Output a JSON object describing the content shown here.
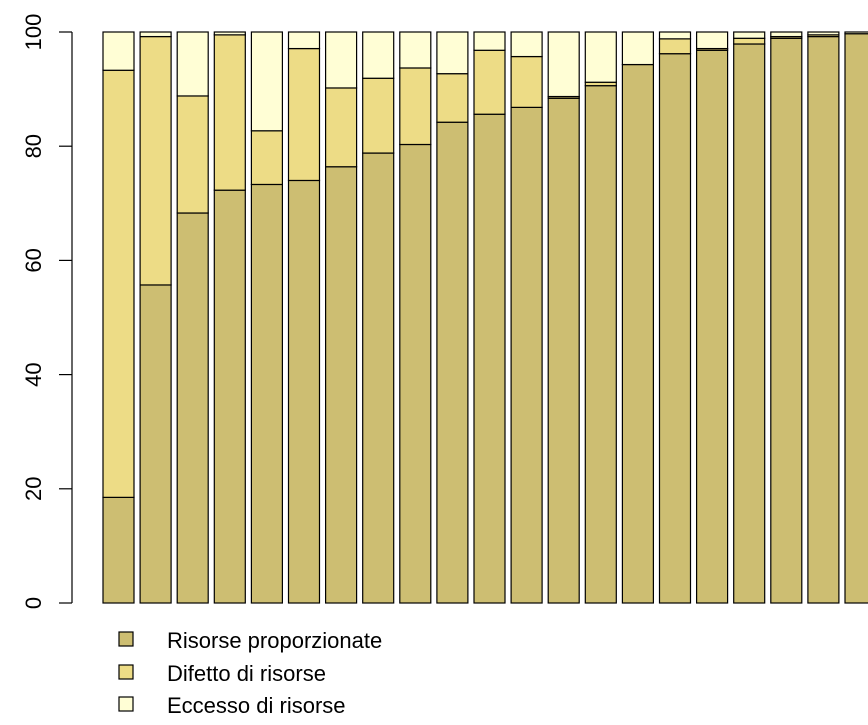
{
  "chart_data": {
    "type": "bar",
    "stacked": true,
    "title": "",
    "xlabel": "",
    "ylabel": "",
    "ylim": [
      0,
      100
    ],
    "yticks": [
      0,
      20,
      40,
      60,
      80,
      100
    ],
    "grid": false,
    "legend_position": "bottom-left",
    "colors": [
      "#cdbe72",
      "#eddc86",
      "#fffed5"
    ],
    "series": [
      {
        "name": "Risorse proporzionate",
        "values": [
          18.5,
          55.7,
          68.3,
          72.3,
          73.3,
          74.0,
          76.4,
          78.8,
          80.3,
          84.2,
          85.6,
          86.8,
          88.4,
          90.6,
          94.3,
          96.2,
          96.8,
          97.9,
          98.9,
          99.2,
          99.7
        ]
      },
      {
        "name": "Difetto di risorse",
        "values": [
          74.8,
          43.5,
          20.5,
          27.2,
          9.4,
          23.1,
          13.8,
          13.1,
          13.4,
          8.5,
          11.2,
          8.9,
          0.3,
          0.6,
          0.0,
          2.6,
          0.3,
          1.0,
          0.3,
          0.3,
          0.0
        ]
      },
      {
        "name": "Eccesso di risorse",
        "values": [
          6.7,
          0.8,
          11.2,
          0.5,
          17.3,
          2.9,
          9.8,
          8.1,
          6.3,
          7.3,
          3.2,
          4.3,
          11.3,
          8.8,
          5.7,
          1.2,
          2.9,
          1.1,
          0.8,
          0.5,
          0.3
        ]
      }
    ]
  },
  "legend": {
    "items": [
      {
        "label": "Risorse proporzionate",
        "color": "#cdbe72"
      },
      {
        "label": "Difetto di risorse",
        "color": "#eddc86"
      },
      {
        "label": "Eccesso di risorse",
        "color": "#fffed5"
      }
    ]
  }
}
